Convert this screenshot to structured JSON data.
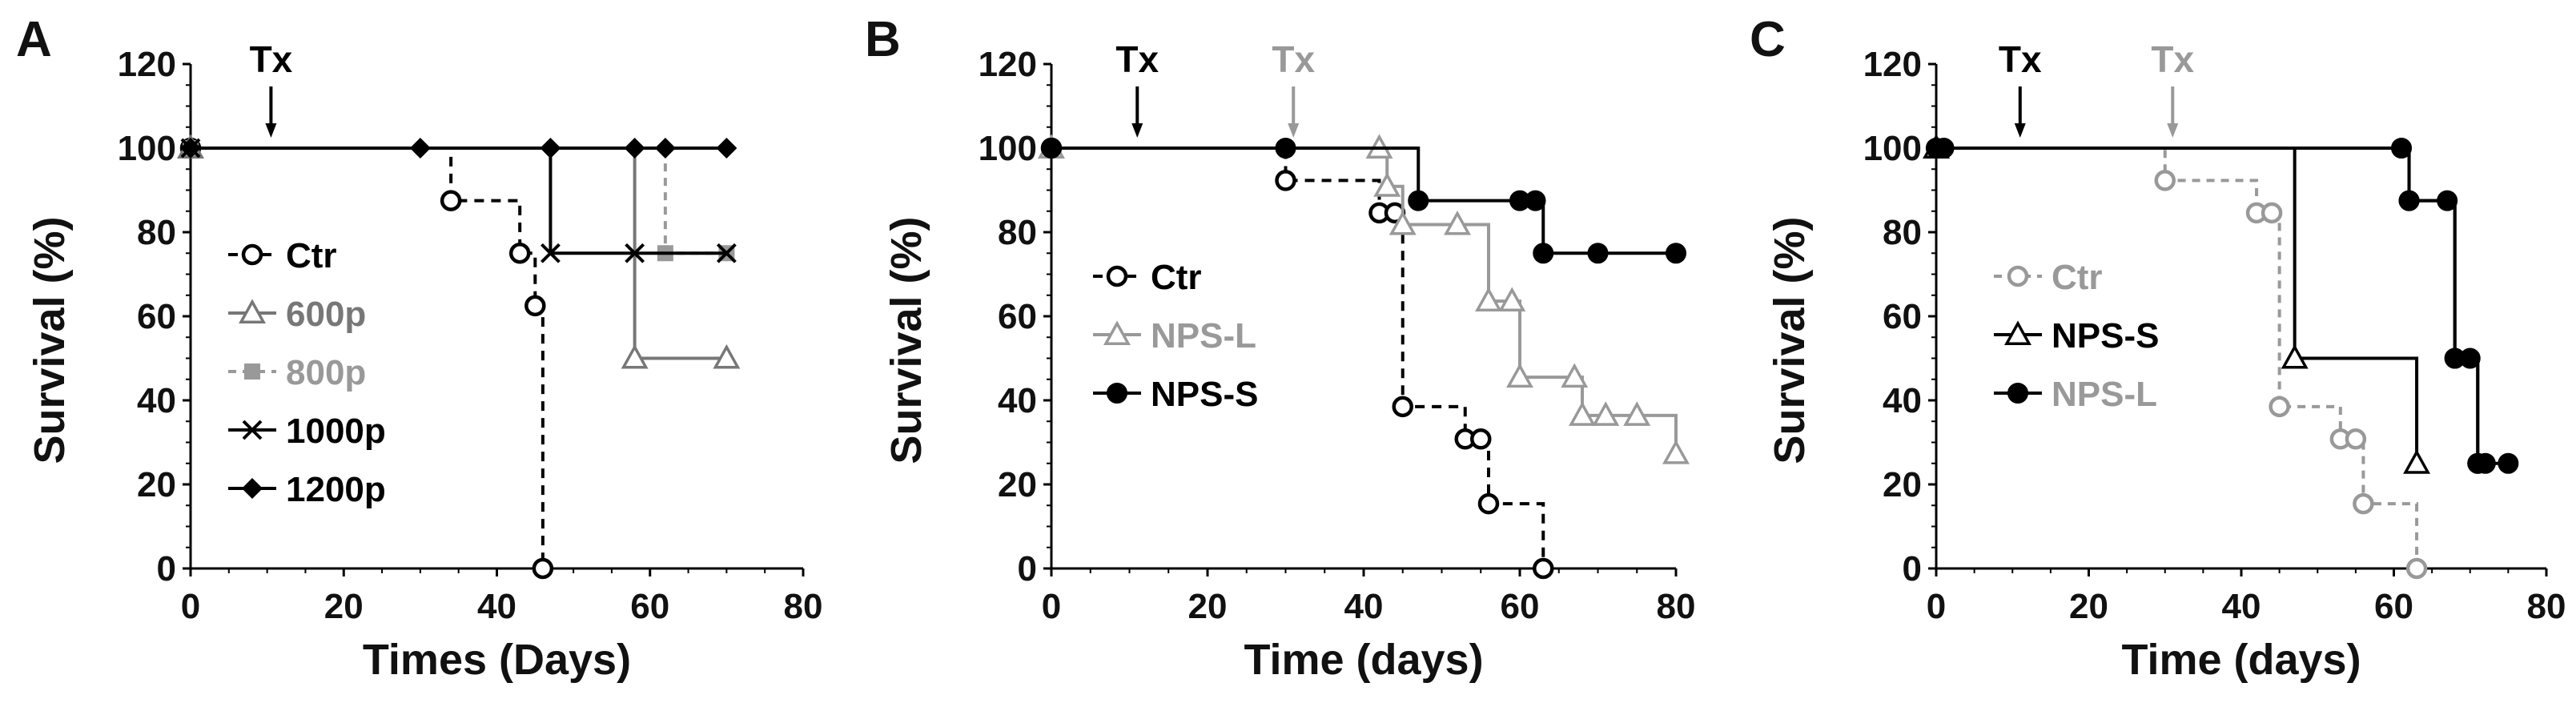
{
  "chart_data": [
    {
      "panel": "A",
      "type": "line",
      "step": true,
      "xlabel": "Times (Days)",
      "ylabel": "Survival (%)",
      "xlim": [
        0,
        80
      ],
      "ylim": [
        0,
        120
      ],
      "xticks": [
        0,
        20,
        40,
        60,
        80
      ],
      "yticks": [
        0,
        20,
        40,
        60,
        80,
        100,
        120
      ],
      "grid": false,
      "legend_position": "left",
      "annotations": [
        {
          "text": "Tx",
          "x": 10.5,
          "color": "#000000"
        }
      ],
      "series": [
        {
          "name": "Ctr",
          "color": "#000000",
          "dash": "12,9",
          "marker": "circle-open",
          "x": [
            0,
            34,
            43,
            45,
            46
          ],
          "y": [
            100,
            87.5,
            75,
            62.5,
            0
          ]
        },
        {
          "name": "600p",
          "color": "#777777",
          "dash": "",
          "marker": "triangle-open",
          "x": [
            0,
            58,
            70
          ],
          "y": [
            100,
            50,
            50
          ]
        },
        {
          "name": "800p",
          "color": "#999999",
          "dash": "10,8",
          "marker": "square-filled",
          "x": [
            0,
            62,
            70
          ],
          "y": [
            100,
            75,
            75
          ]
        },
        {
          "name": "1000p",
          "color": "#000000",
          "dash": "",
          "marker": "x",
          "x": [
            0,
            47,
            58,
            70
          ],
          "y": [
            100,
            75,
            75,
            75
          ]
        },
        {
          "name": "1200p",
          "color": "#000000",
          "dash": "",
          "marker": "diamond-filled",
          "x": [
            0,
            30,
            47,
            58,
            62,
            70
          ],
          "y": [
            100,
            100,
            100,
            100,
            100,
            100
          ]
        }
      ]
    },
    {
      "panel": "B",
      "type": "line",
      "step": true,
      "xlabel": "Time (days)",
      "ylabel": "Survival (%)",
      "xlim": [
        0,
        80
      ],
      "ylim": [
        0,
        120
      ],
      "xticks": [
        0,
        20,
        40,
        60,
        80
      ],
      "yticks": [
        0,
        20,
        40,
        60,
        80,
        100,
        120
      ],
      "grid": false,
      "legend_position": "left",
      "annotations": [
        {
          "text": "Tx",
          "x": 11,
          "color": "#000000"
        },
        {
          "text": "Tx",
          "x": 31,
          "color": "#999999"
        }
      ],
      "series": [
        {
          "name": "Ctr",
          "color": "#000000",
          "dash": "12,9",
          "marker": "circle-open",
          "x": [
            0,
            30,
            42,
            44,
            45,
            53,
            55,
            56,
            63
          ],
          "y": [
            100,
            92.3,
            84.6,
            84.6,
            38.5,
            30.8,
            30.8,
            15.4,
            0
          ]
        },
        {
          "name": "NPS-L",
          "color": "#999999",
          "dash": "",
          "marker": "triangle-open",
          "x": [
            0,
            42,
            43,
            45,
            52,
            56,
            59,
            60,
            67,
            68,
            71,
            75,
            80
          ],
          "y": [
            100,
            100,
            90.9,
            81.8,
            81.8,
            63.6,
            63.6,
            45.5,
            45.5,
            36.4,
            36.4,
            36.4,
            27.3
          ]
        },
        {
          "name": "NPS-S",
          "color": "#000000",
          "dash": "",
          "marker": "circle-filled",
          "x": [
            0,
            30,
            47,
            60,
            62,
            63,
            70,
            80
          ],
          "y": [
            100,
            100,
            87.5,
            87.5,
            87.5,
            75,
            75,
            75
          ]
        }
      ]
    },
    {
      "panel": "C",
      "type": "line",
      "step": true,
      "xlabel": "Time (days)",
      "ylabel": "Survival (%)",
      "xlim": [
        0,
        80
      ],
      "ylim": [
        0,
        120
      ],
      "xticks": [
        0,
        20,
        40,
        60,
        80
      ],
      "yticks": [
        0,
        20,
        40,
        60,
        80,
        100,
        120
      ],
      "grid": false,
      "legend_position": "left",
      "annotations": [
        {
          "text": "Tx",
          "x": 11,
          "color": "#000000"
        },
        {
          "text": "Tx",
          "x": 31,
          "color": "#999999"
        }
      ],
      "series": [
        {
          "name": "Ctr",
          "color": "#999999",
          "dash": "10,8",
          "marker": "circle-open",
          "x": [
            0,
            30,
            42,
            44,
            45,
            53,
            55,
            56,
            63
          ],
          "y": [
            100,
            92.3,
            84.6,
            84.6,
            38.5,
            30.8,
            30.8,
            15.4,
            0
          ]
        },
        {
          "name": "NPS-S",
          "color": "#000000",
          "dash": "",
          "marker": "triangle-open",
          "x": [
            0,
            47,
            63
          ],
          "y": [
            100,
            50,
            25
          ]
        },
        {
          "name": "NPS-L",
          "color": "#000000",
          "dash": "",
          "marker": "circle-filled",
          "x": [
            0,
            62,
            68,
            71,
            75
          ],
          "y": [
            100,
            87.5,
            50,
            25,
            25
          ]
        },
        {
          "name": "",
          "legend_hidden": true,
          "color": "#000000",
          "dash": "",
          "marker": "circle-filled",
          "x": [
            1,
            61,
            62,
            67,
            68,
            70,
            71,
            72
          ],
          "y": [
            100,
            100,
            87.5,
            87.5,
            50,
            50,
            25,
            25
          ]
        }
      ],
      "legend_colors": [
        "#999999",
        "#000000",
        "#999999"
      ]
    }
  ]
}
